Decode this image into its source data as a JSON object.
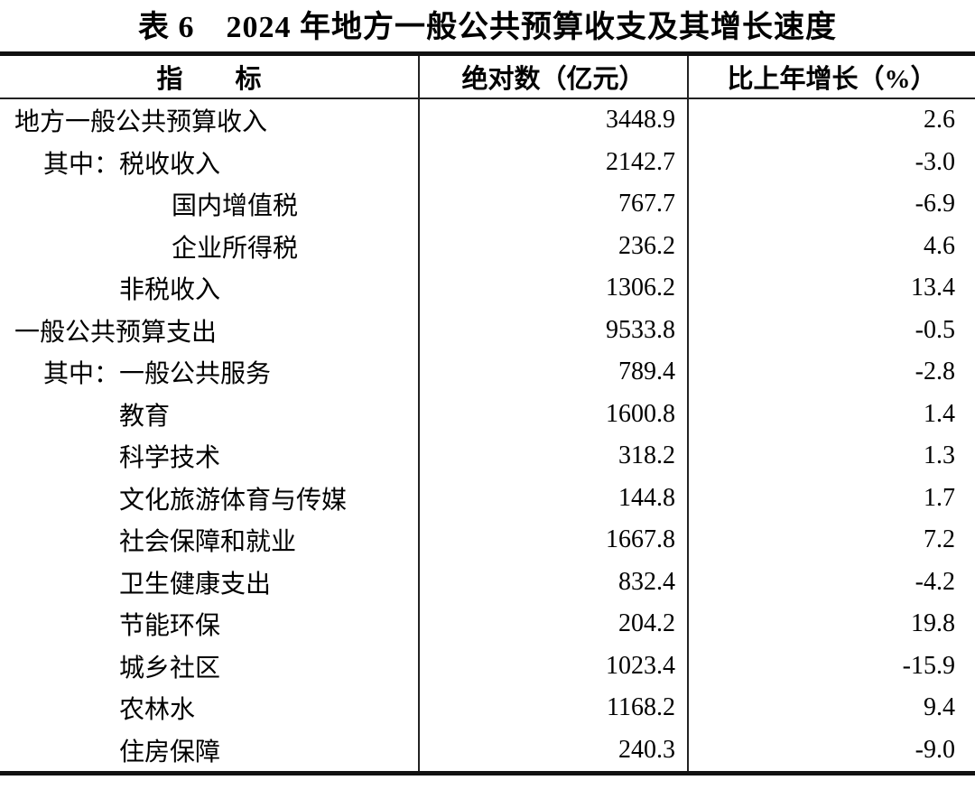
{
  "title": "表 6　2024 年地方一般公共预算收支及其增长速度",
  "colors": {
    "text": "#000000",
    "border": "#111111",
    "background": "#ffffff"
  },
  "table": {
    "columns": {
      "indicator": "指　　标",
      "absolute": "绝对数（亿元）",
      "growth": "比上年增长（%）"
    },
    "rows": [
      {
        "indicator": "地方一般公共预算收入",
        "indent": 0,
        "absolute": "3448.9",
        "growth": "2.6"
      },
      {
        "indicator": "其中：税收收入",
        "indent": 1,
        "absolute": "2142.7",
        "growth": "-3.0"
      },
      {
        "indicator": "国内增值税",
        "indent": 3,
        "absolute": "767.7",
        "growth": "-6.9"
      },
      {
        "indicator": "企业所得税",
        "indent": 3,
        "absolute": "236.2",
        "growth": "4.6"
      },
      {
        "indicator": "非税收入",
        "indent": 2,
        "absolute": "1306.2",
        "growth": "13.4"
      },
      {
        "indicator": "一般公共预算支出",
        "indent": 0,
        "absolute": "9533.8",
        "growth": "-0.5"
      },
      {
        "indicator": "其中：一般公共服务",
        "indent": 1,
        "absolute": "789.4",
        "growth": "-2.8"
      },
      {
        "indicator": "教育",
        "indent": 2,
        "absolute": "1600.8",
        "growth": "1.4"
      },
      {
        "indicator": "科学技术",
        "indent": 2,
        "absolute": "318.2",
        "growth": "1.3"
      },
      {
        "indicator": "文化旅游体育与传媒",
        "indent": 2,
        "absolute": "144.8",
        "growth": "1.7"
      },
      {
        "indicator": "社会保障和就业",
        "indent": 2,
        "absolute": "1667.8",
        "growth": "7.2"
      },
      {
        "indicator": "卫生健康支出",
        "indent": 2,
        "absolute": "832.4",
        "growth": "-4.2"
      },
      {
        "indicator": "节能环保",
        "indent": 2,
        "absolute": "204.2",
        "growth": "19.8"
      },
      {
        "indicator": "城乡社区",
        "indent": 2,
        "absolute": "1023.4",
        "growth": "-15.9"
      },
      {
        "indicator": "农林水",
        "indent": 2,
        "absolute": "1168.2",
        "growth": "9.4"
      },
      {
        "indicator": "住房保障",
        "indent": 2,
        "absolute": "240.3",
        "growth": "-9.0"
      }
    ]
  }
}
